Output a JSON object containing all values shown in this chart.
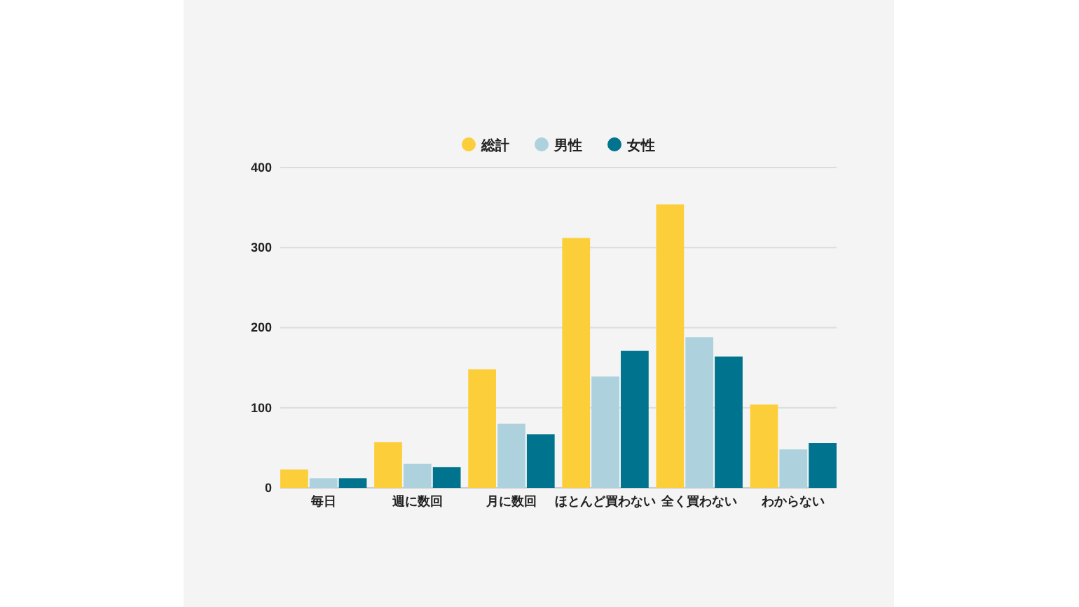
{
  "chart_data": {
    "type": "bar",
    "categories": [
      "毎日",
      "週に数回",
      "月に数回",
      "ほとんど買わない",
      "全く買わない",
      "わからない"
    ],
    "series": [
      {
        "name": "総計",
        "color": "#fccf3a",
        "values": [
          23,
          57,
          148,
          312,
          354,
          104
        ]
      },
      {
        "name": "男性",
        "color": "#add2dd",
        "values": [
          12,
          30,
          80,
          139,
          188,
          48
        ]
      },
      {
        "name": "女性",
        "color": "#00738f",
        "values": [
          12,
          26,
          67,
          171,
          164,
          56
        ]
      }
    ],
    "ylim": [
      0,
      400
    ],
    "yticks": [
      0,
      100,
      200,
      300,
      400
    ],
    "grid": "y",
    "legend": "top"
  }
}
